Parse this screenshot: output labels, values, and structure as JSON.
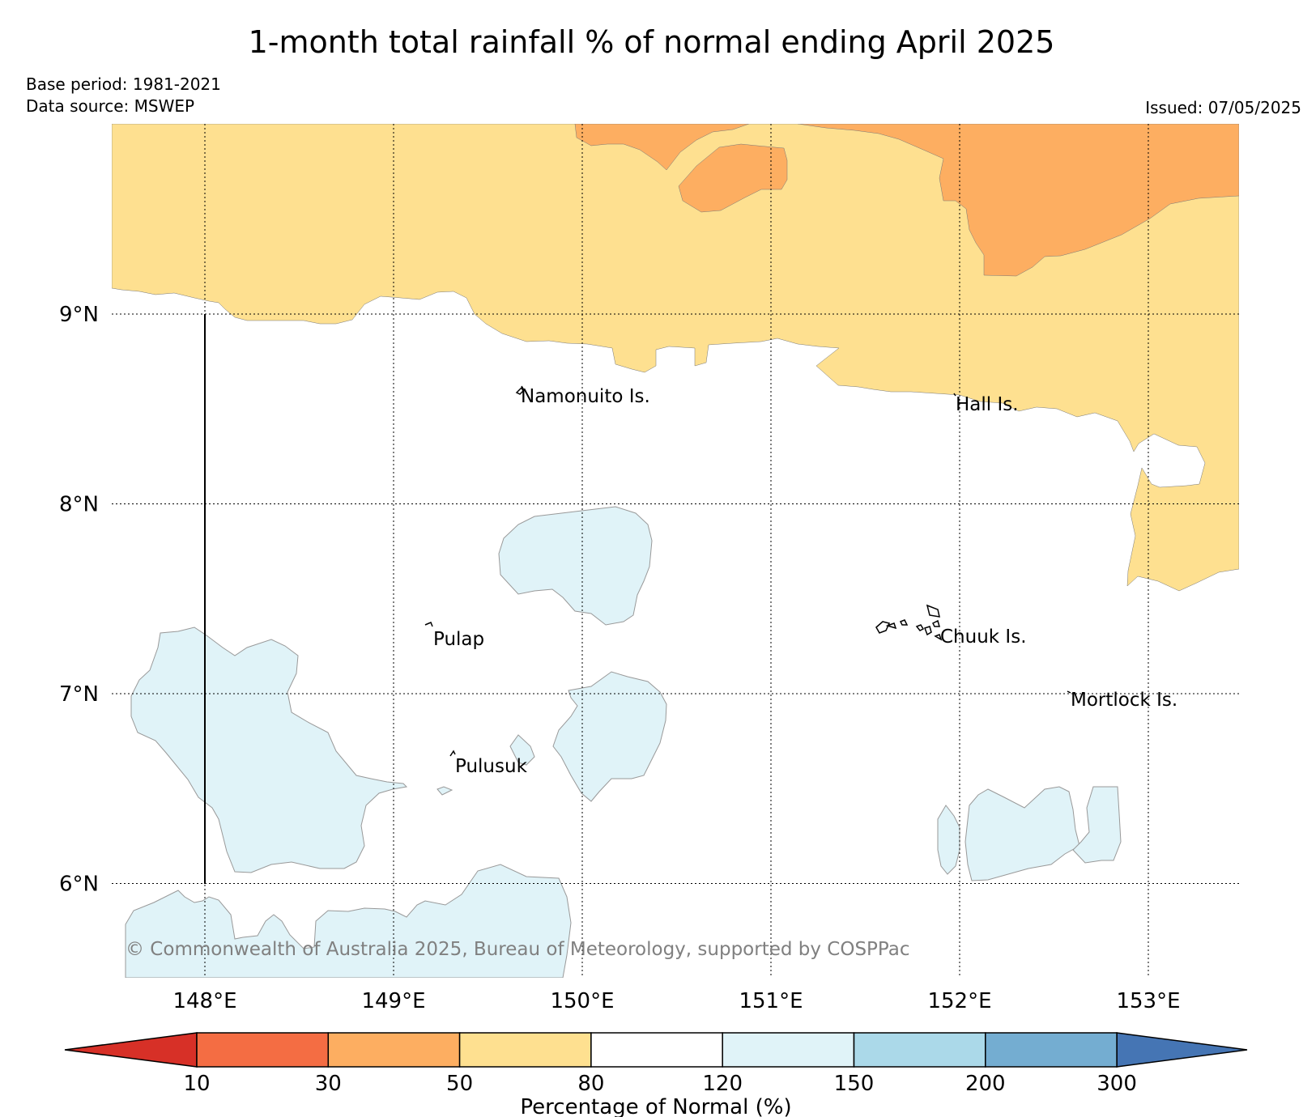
{
  "title": "1-month total rainfall % of normal ending April 2025",
  "base_period": "Base period: 1981-2021",
  "data_source": "Data source: MSWEP",
  "issued": "Issued: 07/05/2025",
  "copyright": "© Commonwealth of Australia 2025, Bureau of Meteorology, supported by COSPPac",
  "map": {
    "lon_ticks": [
      "148°E",
      "149°E",
      "150°E",
      "151°E",
      "152°E",
      "153°E"
    ],
    "lat_ticks": [
      "9°N",
      "8°N",
      "7°N",
      "6°N"
    ],
    "islands": [
      {
        "name": "Namonuito Is."
      },
      {
        "name": "Hall Is."
      },
      {
        "name": "Pulap"
      },
      {
        "name": "Chuuk Is."
      },
      {
        "name": "Mortlock Is."
      },
      {
        "name": "Pulusuk"
      }
    ]
  },
  "colorbar": {
    "title": "Percentage of Normal (%)",
    "ticks": [
      "10",
      "30",
      "50",
      "80",
      "120",
      "150",
      "200",
      "300"
    ],
    "colors": [
      "#d73027",
      "#f46d43",
      "#fdae61",
      "#fee090",
      "#ffffff",
      "#e0f3f8",
      "#abd9e9",
      "#74add1",
      "#4575b4"
    ]
  }
}
